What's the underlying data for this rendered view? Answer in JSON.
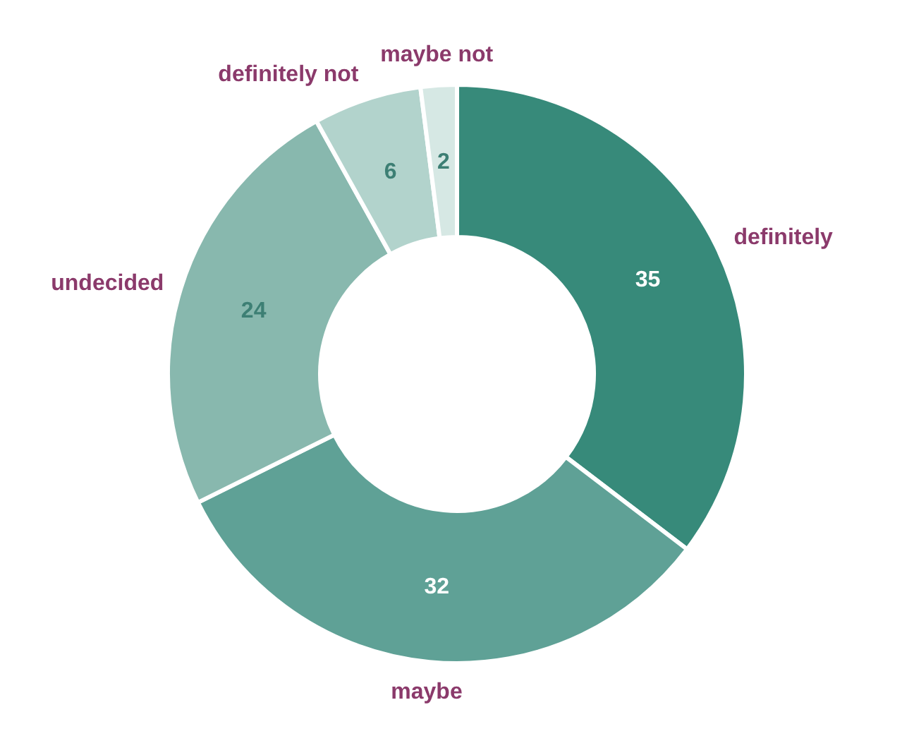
{
  "chart_data": {
    "type": "donut",
    "categories": [
      "definitely",
      "maybe",
      "undecided",
      "definitely not",
      "maybe not"
    ],
    "values": [
      35,
      32,
      24,
      6,
      2
    ],
    "colors": [
      "#378a7a",
      "#5fa196",
      "#88b8ae",
      "#b2d3cc",
      "#d6e8e4"
    ],
    "data_labels": true
  }
}
